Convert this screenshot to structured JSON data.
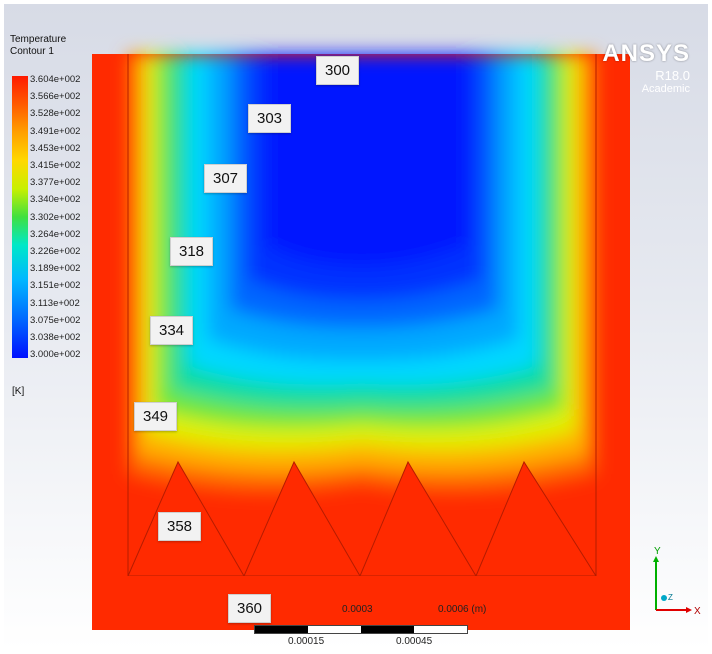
{
  "legend": {
    "title": "Temperature",
    "subtitle": "Contour 1",
    "ticks": [
      "3.604e+002",
      "3.566e+002",
      "3.528e+002",
      "3.491e+002",
      "3.453e+002",
      "3.415e+002",
      "3.377e+002",
      "3.340e+002",
      "3.302e+002",
      "3.264e+002",
      "3.226e+002",
      "3.189e+002",
      "3.151e+002",
      "3.113e+002",
      "3.075e+002",
      "3.038e+002",
      "3.000e+002"
    ],
    "unit": "[K]"
  },
  "labels": {
    "l300": "300",
    "l303": "303",
    "l307": "307",
    "l318": "318",
    "l334": "334",
    "l349": "349",
    "l358": "358",
    "l360": "360"
  },
  "brand": {
    "name": "ANSYS",
    "version": "R18.0",
    "edition": "Academic"
  },
  "scale": {
    "top_left": "0.0003",
    "top_right": "0.0006 (m)",
    "bottom_left": "0.00015",
    "bottom_right": "0.00045"
  },
  "colors": {
    "hot": "#ff2a00",
    "cold": "#0015ff",
    "background_top": "#d7dbe6"
  },
  "axes": {
    "y": "Y",
    "x": "X",
    "z": "Z"
  }
}
